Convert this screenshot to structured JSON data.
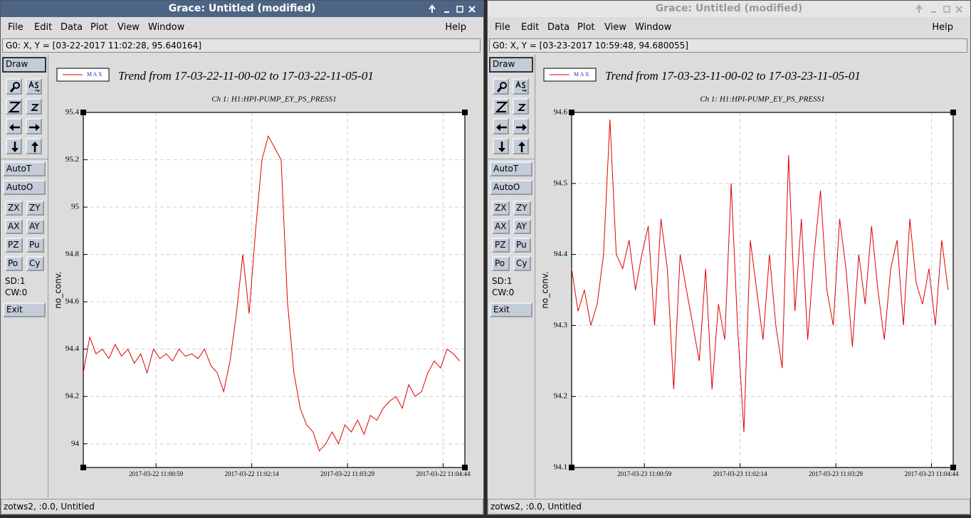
{
  "windows": [
    {
      "title": "Grace: Untitled (modified)",
      "menu": [
        "File",
        "Edit",
        "Data",
        "Plot",
        "View",
        "Window"
      ],
      "help": "Help",
      "locator": "G0: X, Y = [03-22-2017 11:02:28, 95.640164]",
      "draw": "Draw",
      "buttons": [
        "AutoT",
        "AutoO"
      ],
      "pairs": [
        [
          "ZX",
          "ZY"
        ],
        [
          "AX",
          "AY"
        ],
        [
          "PZ",
          "Pu"
        ],
        [
          "Po",
          "Cy"
        ]
      ],
      "info": [
        "SD:1",
        "CW:0"
      ],
      "exit": "Exit",
      "status": "zotws2, :0.0, Untitled"
    },
    {
      "title": "Grace: Untitled (modified)",
      "menu": [
        "File",
        "Edit",
        "Data",
        "Plot",
        "View",
        "Window"
      ],
      "help": "Help",
      "locator": "G0: X, Y = [03-23-2017 10:59:48, 94.680055]",
      "draw": "Draw",
      "buttons": [
        "AutoT",
        "AutoO"
      ],
      "pairs": [
        [
          "ZX",
          "ZY"
        ],
        [
          "AX",
          "AY"
        ],
        [
          "PZ",
          "Pu"
        ],
        [
          "Po",
          "Cy"
        ]
      ],
      "info": [
        "SD:1",
        "CW:0"
      ],
      "exit": "Exit",
      "status": "zotws2, :0.0, Untitled"
    }
  ],
  "chart_data": [
    {
      "type": "line",
      "title": "Trend from 17-03-22-11-00-02 to 17-03-22-11-05-01",
      "subtitle": "Ch 1: H1:HPI-PUMP_EY_PS_PRESS1",
      "y_label": "no_conv.",
      "legend": "top-left",
      "grid": true,
      "x": [
        "2017-03-22 11:00:02",
        "2017-03-22 11:00:07",
        "2017-03-22 11:00:12",
        "2017-03-22 11:00:17",
        "2017-03-22 11:00:22",
        "2017-03-22 11:00:27",
        "2017-03-22 11:00:32",
        "2017-03-22 11:00:37",
        "2017-03-22 11:00:42",
        "2017-03-22 11:00:47",
        "2017-03-22 11:00:52",
        "2017-03-22 11:00:57",
        "2017-03-22 11:01:02",
        "2017-03-22 11:01:07",
        "2017-03-22 11:01:12",
        "2017-03-22 11:01:17",
        "2017-03-22 11:01:22",
        "2017-03-22 11:01:27",
        "2017-03-22 11:01:32",
        "2017-03-22 11:01:37",
        "2017-03-22 11:01:42",
        "2017-03-22 11:01:47",
        "2017-03-22 11:01:52",
        "2017-03-22 11:01:57",
        "2017-03-22 11:02:02",
        "2017-03-22 11:02:07",
        "2017-03-22 11:02:12",
        "2017-03-22 11:02:17",
        "2017-03-22 11:02:22",
        "2017-03-22 11:02:27",
        "2017-03-22 11:02:32",
        "2017-03-22 11:02:37",
        "2017-03-22 11:02:42",
        "2017-03-22 11:02:47",
        "2017-03-22 11:02:52",
        "2017-03-22 11:02:57",
        "2017-03-22 11:03:02",
        "2017-03-22 11:03:07",
        "2017-03-22 11:03:12",
        "2017-03-22 11:03:17",
        "2017-03-22 11:03:22",
        "2017-03-22 11:03:27",
        "2017-03-22 11:03:32",
        "2017-03-22 11:03:37",
        "2017-03-22 11:03:42",
        "2017-03-22 11:03:47",
        "2017-03-22 11:03:52",
        "2017-03-22 11:03:57",
        "2017-03-22 11:04:02",
        "2017-03-22 11:04:07",
        "2017-03-22 11:04:12",
        "2017-03-22 11:04:17",
        "2017-03-22 11:04:22",
        "2017-03-22 11:04:27",
        "2017-03-22 11:04:32",
        "2017-03-22 11:04:37",
        "2017-03-22 11:04:42",
        "2017-03-22 11:04:47",
        "2017-03-22 11:04:52",
        "2017-03-22 11:04:57"
      ],
      "series": [
        {
          "name": "MAX",
          "color": "#e00000",
          "values": [
            94.3,
            94.45,
            94.38,
            94.4,
            94.36,
            94.42,
            94.37,
            94.4,
            94.34,
            94.38,
            94.3,
            94.4,
            94.36,
            94.38,
            94.35,
            94.4,
            94.37,
            94.38,
            94.36,
            94.4,
            94.33,
            94.3,
            94.22,
            94.35,
            94.55,
            94.8,
            94.55,
            94.9,
            95.2,
            95.3,
            95.25,
            95.2,
            94.6,
            94.3,
            94.15,
            94.08,
            94.05,
            93.97,
            94.0,
            94.05,
            94.0,
            94.08,
            94.05,
            94.1,
            94.04,
            94.12,
            94.1,
            94.15,
            94.18,
            94.2,
            94.15,
            94.25,
            94.2,
            94.22,
            94.3,
            94.35,
            94.32,
            94.4,
            94.38,
            94.35
          ]
        }
      ],
      "xlim": [
        "2017-03-22 11:00:02",
        "2017-03-22 11:05:01"
      ],
      "xticks": [
        "2017-03-22 11:00:59",
        "2017-03-22 11:02:14",
        "2017-03-22 11:03:29",
        "2017-03-22 11:04:44"
      ],
      "ylim": [
        93.9,
        95.4
      ],
      "yticks": [
        94,
        94.2,
        94.4,
        94.6,
        94.8,
        95,
        95.2,
        95.4
      ]
    },
    {
      "type": "line",
      "title": "Trend from 17-03-23-11-00-02 to 17-03-23-11-05-01",
      "subtitle": "Ch 1: H1:HPI-PUMP_EY_PS_PRESS1",
      "y_label": "no_conv.",
      "legend": "top-left",
      "grid": true,
      "x": [
        "2017-03-23 11:00:02",
        "2017-03-23 11:00:07",
        "2017-03-23 11:00:12",
        "2017-03-23 11:00:17",
        "2017-03-23 11:00:22",
        "2017-03-23 11:00:27",
        "2017-03-23 11:00:32",
        "2017-03-23 11:00:37",
        "2017-03-23 11:00:42",
        "2017-03-23 11:00:47",
        "2017-03-23 11:00:52",
        "2017-03-23 11:00:57",
        "2017-03-23 11:01:02",
        "2017-03-23 11:01:07",
        "2017-03-23 11:01:12",
        "2017-03-23 11:01:17",
        "2017-03-23 11:01:22",
        "2017-03-23 11:01:27",
        "2017-03-23 11:01:32",
        "2017-03-23 11:01:37",
        "2017-03-23 11:01:42",
        "2017-03-23 11:01:47",
        "2017-03-23 11:01:52",
        "2017-03-23 11:01:57",
        "2017-03-23 11:02:02",
        "2017-03-23 11:02:07",
        "2017-03-23 11:02:12",
        "2017-03-23 11:02:17",
        "2017-03-23 11:02:22",
        "2017-03-23 11:02:27",
        "2017-03-23 11:02:32",
        "2017-03-23 11:02:37",
        "2017-03-23 11:02:42",
        "2017-03-23 11:02:47",
        "2017-03-23 11:02:52",
        "2017-03-23 11:02:57",
        "2017-03-23 11:03:02",
        "2017-03-23 11:03:07",
        "2017-03-23 11:03:12",
        "2017-03-23 11:03:17",
        "2017-03-23 11:03:22",
        "2017-03-23 11:03:27",
        "2017-03-23 11:03:32",
        "2017-03-23 11:03:37",
        "2017-03-23 11:03:42",
        "2017-03-23 11:03:47",
        "2017-03-23 11:03:52",
        "2017-03-23 11:03:57",
        "2017-03-23 11:04:02",
        "2017-03-23 11:04:07",
        "2017-03-23 11:04:12",
        "2017-03-23 11:04:17",
        "2017-03-23 11:04:22",
        "2017-03-23 11:04:27",
        "2017-03-23 11:04:32",
        "2017-03-23 11:04:37",
        "2017-03-23 11:04:42",
        "2017-03-23 11:04:47",
        "2017-03-23 11:04:52",
        "2017-03-23 11:04:57"
      ],
      "series": [
        {
          "name": "MAX",
          "color": "#e00000",
          "values": [
            94.38,
            94.32,
            94.35,
            94.3,
            94.33,
            94.4,
            94.59,
            94.4,
            94.38,
            94.42,
            94.35,
            94.4,
            94.44,
            94.3,
            94.45,
            94.38,
            94.21,
            94.4,
            94.35,
            94.3,
            94.25,
            94.38,
            94.21,
            94.33,
            94.28,
            94.5,
            94.3,
            94.15,
            94.42,
            94.35,
            94.28,
            94.4,
            94.3,
            94.24,
            94.54,
            94.32,
            94.45,
            94.28,
            94.4,
            94.49,
            94.35,
            94.3,
            94.45,
            94.38,
            94.27,
            94.4,
            94.33,
            94.44,
            94.35,
            94.28,
            94.38,
            94.42,
            94.3,
            94.45,
            94.36,
            94.33,
            94.38,
            94.3,
            94.42,
            94.35
          ]
        }
      ],
      "xlim": [
        "2017-03-23 11:00:02",
        "2017-03-23 11:05:01"
      ],
      "xticks": [
        "2017-03-23 11:00:59",
        "2017-03-23 11:02:14",
        "2017-03-23 11:03:29",
        "2017-03-23 11:04:44"
      ],
      "ylim": [
        94.1,
        94.6
      ],
      "yticks": [
        94.1,
        94.2,
        94.3,
        94.4,
        94.5,
        94.6
      ]
    }
  ]
}
